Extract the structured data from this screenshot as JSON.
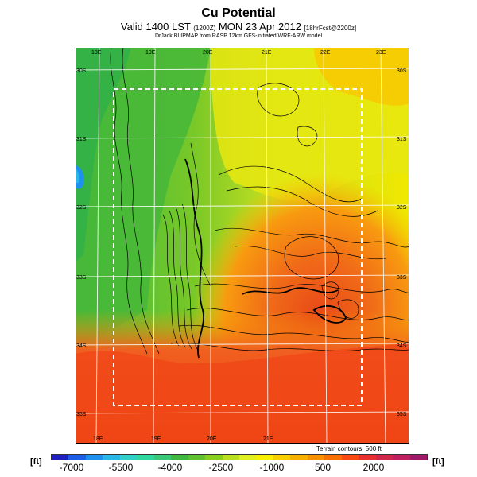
{
  "header": {
    "title": "Cu Potential",
    "subtitle_main": "Valid 1400 LST",
    "subtitle_small_a": "(1200Z)",
    "subtitle_date": "MON 23 Apr 2012",
    "subtitle_small_b": "[18hrFcst@2200z]",
    "credit": "DrJack BLIPMAP from RASP 12km GFS-initiated WRF-ARW model"
  },
  "map": {
    "top_lon_labels": [
      "18E",
      "19E",
      "20E",
      "21E",
      "22E",
      "23E"
    ],
    "bottom_lon_labels": [
      "18E",
      "19E",
      "20E",
      "21E"
    ],
    "left_lat_labels": [
      "30S",
      "31S",
      "32S",
      "33S",
      "34S",
      "35S"
    ],
    "right_lat_labels": [
      "30S",
      "31S",
      "32S",
      "33S",
      "34S",
      "35S"
    ],
    "terrain_note": "Terrain contours: 500 ft"
  },
  "legend": {
    "unit_left": "[ft]",
    "unit_right": "[ft]",
    "ticks": [
      "-7000",
      "-5500",
      "-4000",
      "-2500",
      "-1000",
      "500",
      "2000"
    ],
    "colors": [
      "#2020c0",
      "#1e5ee6",
      "#1e90f0",
      "#28b8e8",
      "#30d0c8",
      "#30d8a0",
      "#38c878",
      "#40b840",
      "#60c030",
      "#88d020",
      "#b8e020",
      "#e0f020",
      "#f8f000",
      "#f8d000",
      "#f8b000",
      "#f89000",
      "#f87000",
      "#f84a10",
      "#e83030",
      "#d02848",
      "#c02060",
      "#a01868"
    ]
  }
}
